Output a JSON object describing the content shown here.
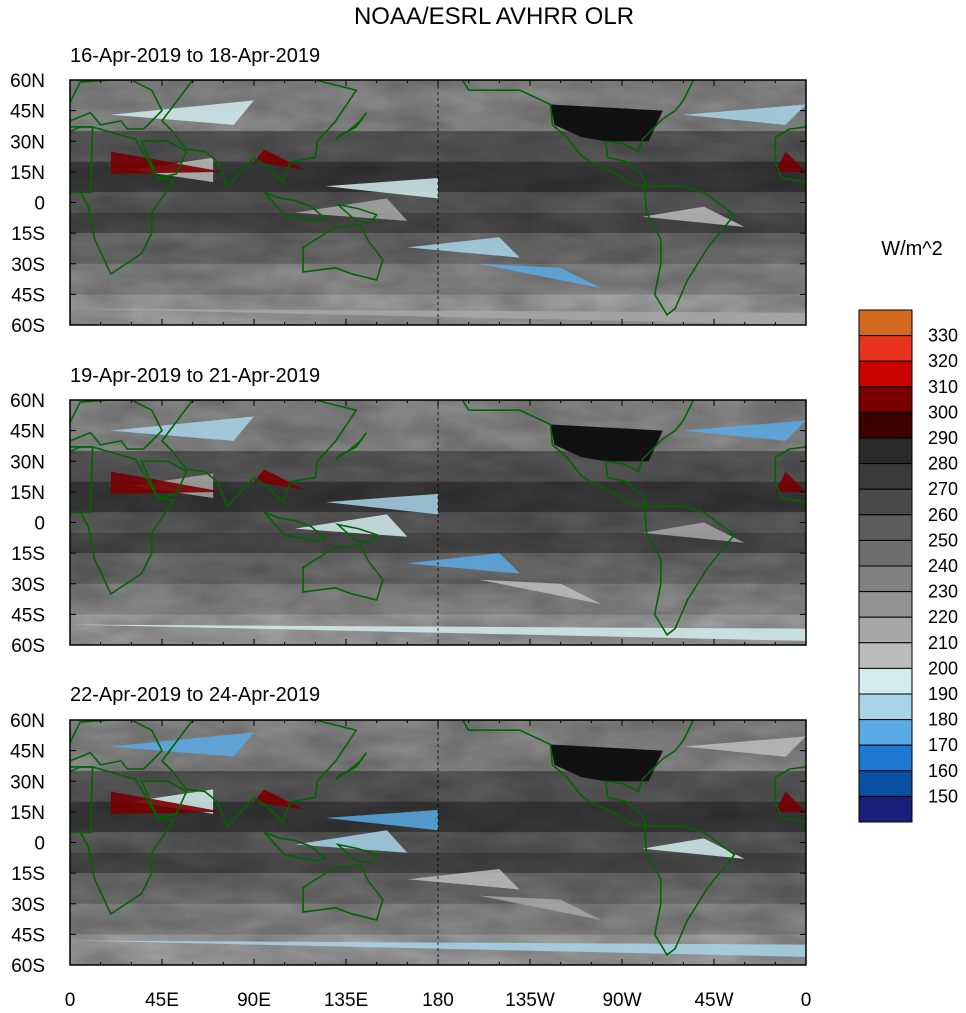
{
  "title": "NOAA/ESRL AVHRR OLR",
  "units_label": "W/m^2",
  "panels": [
    {
      "label": "16-Apr-2019 to 18-Apr-2019"
    },
    {
      "label": "19-Apr-2019 to 21-Apr-2019"
    },
    {
      "label": "22-Apr-2019 to 24-Apr-2019"
    }
  ],
  "lat_ticks": [
    "60N",
    "45N",
    "30N",
    "15N",
    "0",
    "15S",
    "30S",
    "45S",
    "60S"
  ],
  "lon_ticks": [
    "0",
    "45E",
    "90E",
    "135E",
    "180",
    "135W",
    "90W",
    "45W",
    "0"
  ],
  "colorbar": {
    "levels": [
      "330",
      "320",
      "310",
      "300",
      "290",
      "280",
      "270",
      "260",
      "250",
      "240",
      "230",
      "220",
      "210",
      "200",
      "190",
      "180",
      "170",
      "160",
      "150"
    ],
    "colors": [
      "#d2691e",
      "#e8321e",
      "#c80000",
      "#780000",
      "#3c0000",
      "#2a2a2a",
      "#3a3a3a",
      "#4a4a4a",
      "#5c5c5c",
      "#6e6e6e",
      "#808080",
      "#939393",
      "#a7a7a7",
      "#bcbcbc",
      "#d4ecec",
      "#a8d4e8",
      "#5aaae6",
      "#1e78d2",
      "#0a50a0",
      "#1a1e78"
    ]
  },
  "land_outline_color": "#006400"
}
